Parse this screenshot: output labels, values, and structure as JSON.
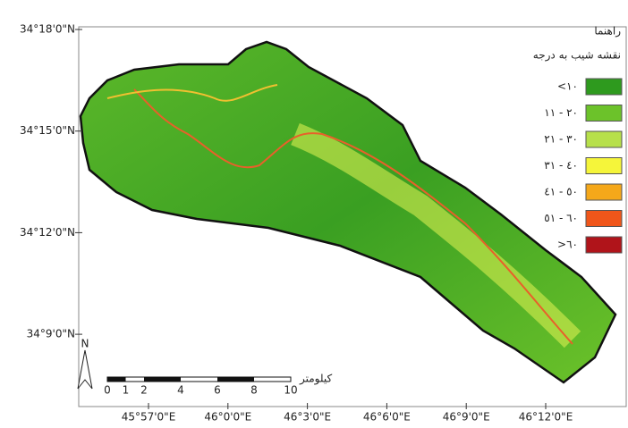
{
  "map": {
    "lat_labels": [
      "34°18'0\"N",
      "34°15'0\"N",
      "34°12'0\"N",
      "34°9'0\"N"
    ],
    "lon_labels": [
      "45°57'0\"E",
      "46°0'0\"E",
      "46°3'0\"E",
      "46°6'0\"E",
      "46°9'0\"E",
      "46°12'0\"E"
    ],
    "legend": {
      "title": "راهنما",
      "subtitle": "نقشه شیب به درجه",
      "items": [
        {
          "label": "<١٠",
          "color": "#2e9a1e"
        },
        {
          "label": "٢٠ - ١١",
          "color": "#6cc22a"
        },
        {
          "label": "٣٠ - ٢١",
          "color": "#b7e04a"
        },
        {
          "label": "٤٠ - ٣١",
          "color": "#f5f53a"
        },
        {
          "label": "٥٠ - ٤١",
          "color": "#f5a81a"
        },
        {
          "label": "٦٠ - ٥١",
          "color": "#f0561a"
        },
        {
          "label": ">٦٠",
          "color": "#b0141a"
        }
      ]
    },
    "scale_bar": {
      "ticks": [
        0,
        1,
        2,
        4,
        6,
        8,
        10
      ],
      "unit": "کیلومتر"
    },
    "north": "N"
  }
}
